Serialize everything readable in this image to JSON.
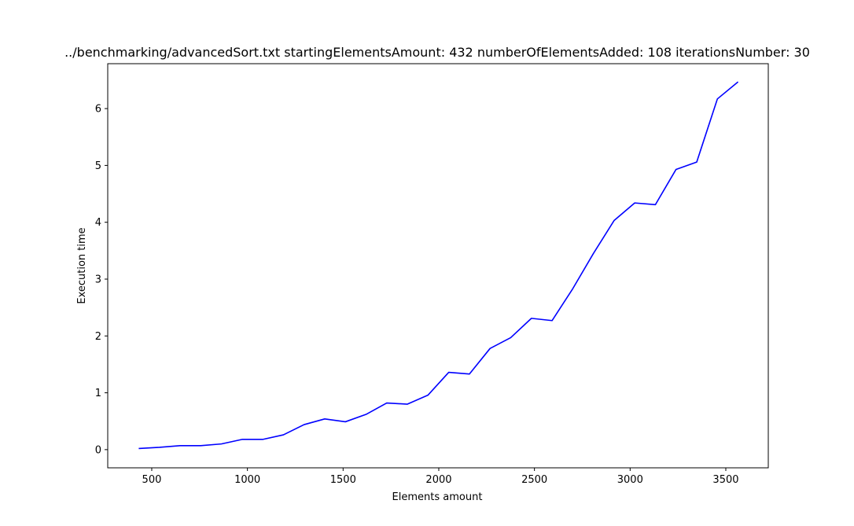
{
  "chart_data": {
    "type": "line",
    "title": "../benchmarking/advancedSort.txt startingElementsAmount: 432 numberOfElementsAdded: 108 iterationsNumber: 30",
    "xlabel": "Elements amount",
    "ylabel": "Execution time",
    "xlim": [
      270,
      3722
    ],
    "ylim": [
      -0.32,
      6.79
    ],
    "xticks": [
      500,
      1000,
      1500,
      2000,
      2500,
      3000,
      3500
    ],
    "yticks": [
      0,
      1,
      2,
      3,
      4,
      5,
      6
    ],
    "grid": false,
    "series": [
      {
        "color": "#0000ff",
        "x": [
          432,
          540,
          648,
          756,
          864,
          972,
          1080,
          1188,
          1296,
          1404,
          1512,
          1620,
          1728,
          1836,
          1944,
          2052,
          2160,
          2268,
          2376,
          2484,
          2592,
          2700,
          2808,
          2916,
          3024,
          3132,
          3240,
          3348,
          3456,
          3564
        ],
        "y": [
          0.02,
          0.04,
          0.07,
          0.07,
          0.1,
          0.18,
          0.18,
          0.26,
          0.44,
          0.54,
          0.49,
          0.62,
          0.82,
          0.8,
          0.96,
          1.36,
          1.33,
          1.78,
          1.97,
          2.31,
          2.27,
          2.83,
          3.45,
          4.03,
          4.34,
          4.31,
          4.93,
          5.06,
          6.17,
          6.47
        ]
      }
    ]
  }
}
